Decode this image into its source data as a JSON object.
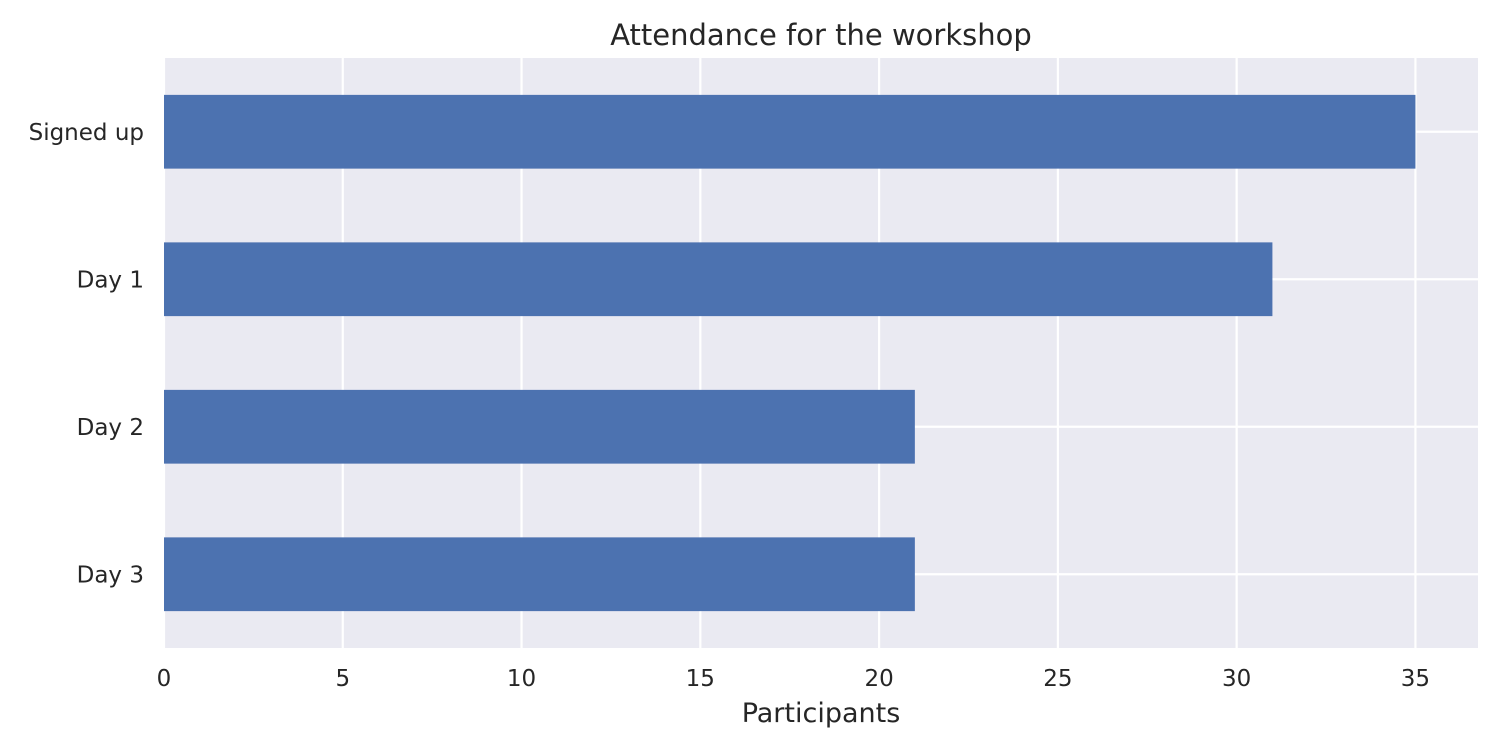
{
  "chart_data": {
    "type": "bar",
    "orientation": "horizontal",
    "title": "Attendance for the workshop",
    "xlabel": "Participants",
    "ylabel": "",
    "categories": [
      "Signed up",
      "Day 1",
      "Day 2",
      "Day 3"
    ],
    "values": [
      35,
      31,
      21,
      21
    ],
    "xlim": [
      0,
      36.75
    ],
    "xticks": [
      0,
      5,
      10,
      15,
      20,
      25,
      30,
      35
    ],
    "grid": true,
    "legend": "none",
    "colors": {
      "bar": "#4c72b0",
      "plot_background": "#eaeaf2",
      "grid": "#ffffff",
      "text": "#262626"
    }
  }
}
